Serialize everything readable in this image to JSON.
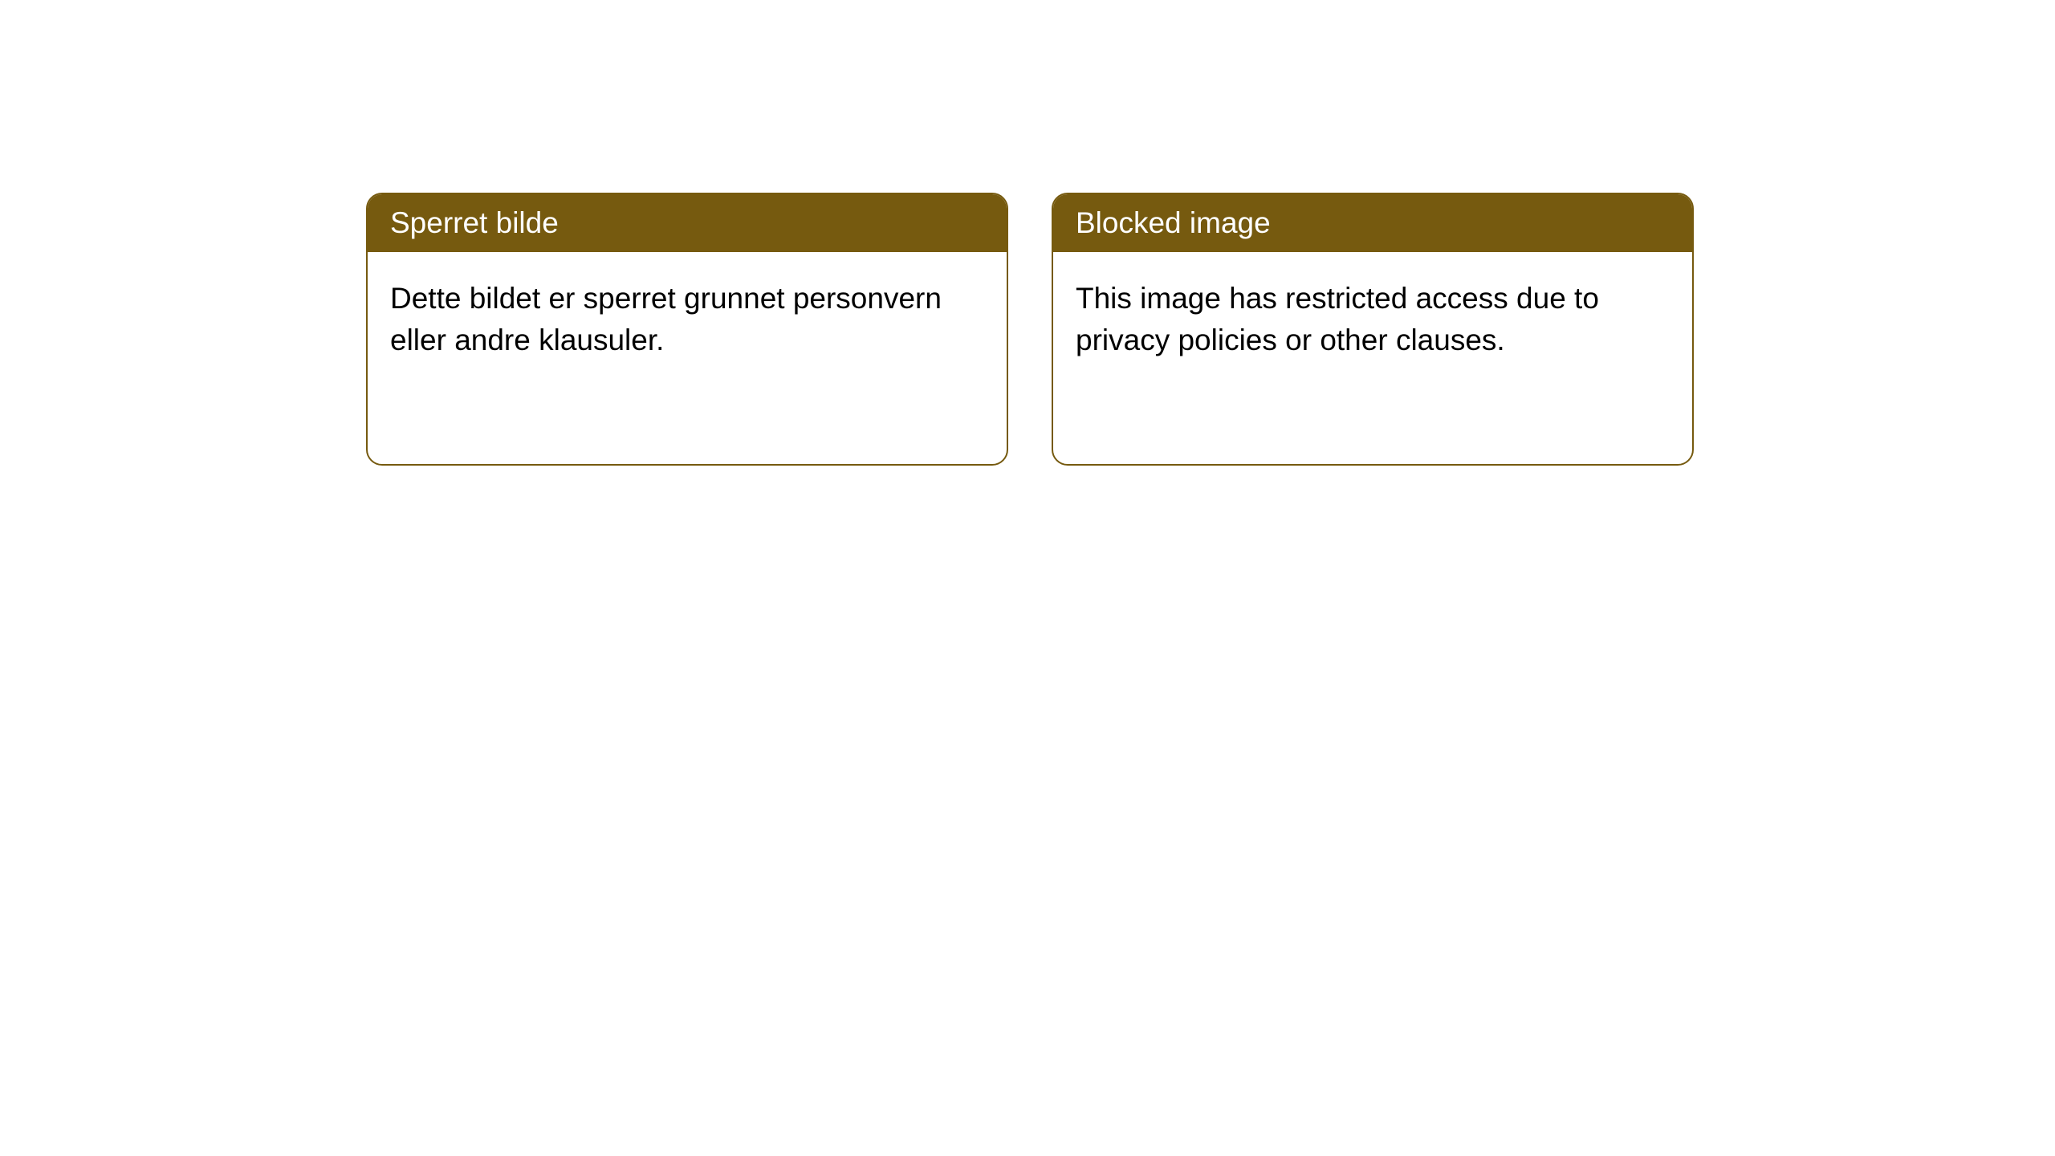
{
  "cards": [
    {
      "title": "Sperret bilde",
      "body": "Dette bildet er sperret grunnet personvern eller andre klausuler."
    },
    {
      "title": "Blocked image",
      "body": "This image has restricted access due to privacy policies or other clauses."
    }
  ],
  "style": {
    "header_bg_color": "#765a0f",
    "header_text_color": "#ffffff",
    "body_text_color": "#000000",
    "card_bg_color": "#ffffff",
    "card_border_color": "#765a0f",
    "card_border_radius": 20,
    "card_border_width": 2,
    "title_fontsize": 37,
    "body_fontsize": 37
  }
}
